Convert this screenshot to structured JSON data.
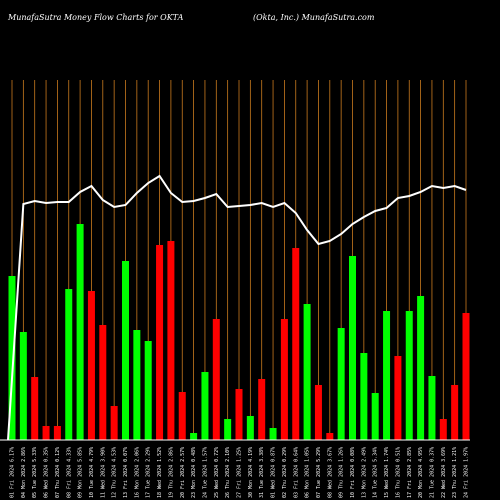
{
  "header": {
    "left": "MunafaSutra  Money Flow  Charts for OKTA",
    "right": "(Okta, Inc.) MunafaSutra.com"
  },
  "colors": {
    "background": "#000000",
    "grid": "#c87a1e",
    "up": "#00ff00",
    "down": "#ff0000",
    "line": "#ffffff",
    "axis": "#ffffff"
  },
  "chart_data": {
    "type": "bar",
    "title": "MunafaSutra  Money Flow  Charts for OKTA",
    "subtitle": "(Okta, Inc.) MunafaSutra.com",
    "categories": [
      "01 Fri 2024 6.17%",
      "04 Mon 2024 2.86%",
      "05 Tue 2024 5.33%",
      "06 Wed 2024 0.35%",
      "07 Thu 2024 0.12%",
      "08 Fri 2024 4.33%",
      "09 Mon 2024 5.85%",
      "10 Tue 2024 4.79%",
      "11 Wed 2024 3.90%",
      "12 Thu 2024 4.53%",
      "13 Fri 2024 0.07%",
      "16 Mon 2024 2.06%",
      "17 Tue 2024 2.29%",
      "18 Wed 2024 1.52%",
      "19 Thu 2024 2.86%",
      "20 Fri 2024 2.57%",
      "23 Mon 2024 0.48%",
      "24 Tue 2024 1.57%",
      "25 Wed 2024 0.72%",
      "26 Thu 2024 2.10%",
      "27 Fri 2024 1.25%",
      "30 Mon 2024 4.19%",
      "31 Tue 2024 3.38%",
      "01 Wed 2024 0.87%",
      "02 Thu 2024 0.29%",
      "03 Fri 2024 0.64%",
      "06 Mon 2024 1.05%",
      "07 Tue 2024 5.29%",
      "08 Wed 2024 3.67%",
      "09 Thu 2024 1.26%",
      "10 Fri 2024 0.08%",
      "13 Mon 2024 2.49%",
      "14 Tue 2024 5.34%",
      "15 Wed 2024 1.74%",
      "16 Thu 2024 0.51%",
      "17 Fri 2024 2.85%",
      "20 Mon 2024 4.95%",
      "21 Tue 2024 0.37%",
      "22 Wed 2024 3.69%",
      "23 Thu 2024 1.21%",
      "24 Fri 2024 1.97%"
    ],
    "bars": [
      {
        "value": 164,
        "dir": "up"
      },
      {
        "value": 108,
        "dir": "up"
      },
      {
        "value": 63,
        "dir": "down"
      },
      {
        "value": 14,
        "dir": "down"
      },
      {
        "value": 14,
        "dir": "down"
      },
      {
        "value": 151,
        "dir": "up"
      },
      {
        "value": 216,
        "dir": "up"
      },
      {
        "value": 149,
        "dir": "down"
      },
      {
        "value": 115,
        "dir": "down"
      },
      {
        "value": 34,
        "dir": "down"
      },
      {
        "value": 179,
        "dir": "up"
      },
      {
        "value": 110,
        "dir": "up"
      },
      {
        "value": 99,
        "dir": "up"
      },
      {
        "value": 195,
        "dir": "down"
      },
      {
        "value": 199,
        "dir": "down"
      },
      {
        "value": 48,
        "dir": "down"
      },
      {
        "value": 7,
        "dir": "up"
      },
      {
        "value": 68,
        "dir": "up"
      },
      {
        "value": 121,
        "dir": "down"
      },
      {
        "value": 21,
        "dir": "up"
      },
      {
        "value": 51,
        "dir": "down"
      },
      {
        "value": 24,
        "dir": "up"
      },
      {
        "value": 61,
        "dir": "down"
      },
      {
        "value": 12,
        "dir": "up"
      },
      {
        "value": 121,
        "dir": "down"
      },
      {
        "value": 192,
        "dir": "down"
      },
      {
        "value": 136,
        "dir": "up"
      },
      {
        "value": 55,
        "dir": "down"
      },
      {
        "value": 7,
        "dir": "down"
      },
      {
        "value": 112,
        "dir": "up"
      },
      {
        "value": 184,
        "dir": "up"
      },
      {
        "value": 87,
        "dir": "up"
      },
      {
        "value": 47,
        "dir": "up"
      },
      {
        "value": 129,
        "dir": "up"
      },
      {
        "value": 84,
        "dir": "down"
      },
      {
        "value": 129,
        "dir": "up"
      },
      {
        "value": 144,
        "dir": "up"
      },
      {
        "value": 64,
        "dir": "up"
      },
      {
        "value": 21,
        "dir": "down"
      },
      {
        "value": 55,
        "dir": "down"
      },
      {
        "value": 127,
        "dir": "down"
      }
    ],
    "line_values": [
      0.0,
      236,
      239,
      237,
      238,
      238,
      248,
      254,
      240,
      233,
      235,
      247,
      257,
      264,
      247,
      238,
      239,
      242,
      246,
      233,
      234,
      235,
      237,
      233,
      237,
      227,
      210,
      196,
      199,
      206,
      216,
      223,
      229,
      232,
      242,
      244,
      248,
      254,
      252,
      254,
      250
    ],
    "ylim": [
      0,
      360
    ],
    "grid": true
  }
}
